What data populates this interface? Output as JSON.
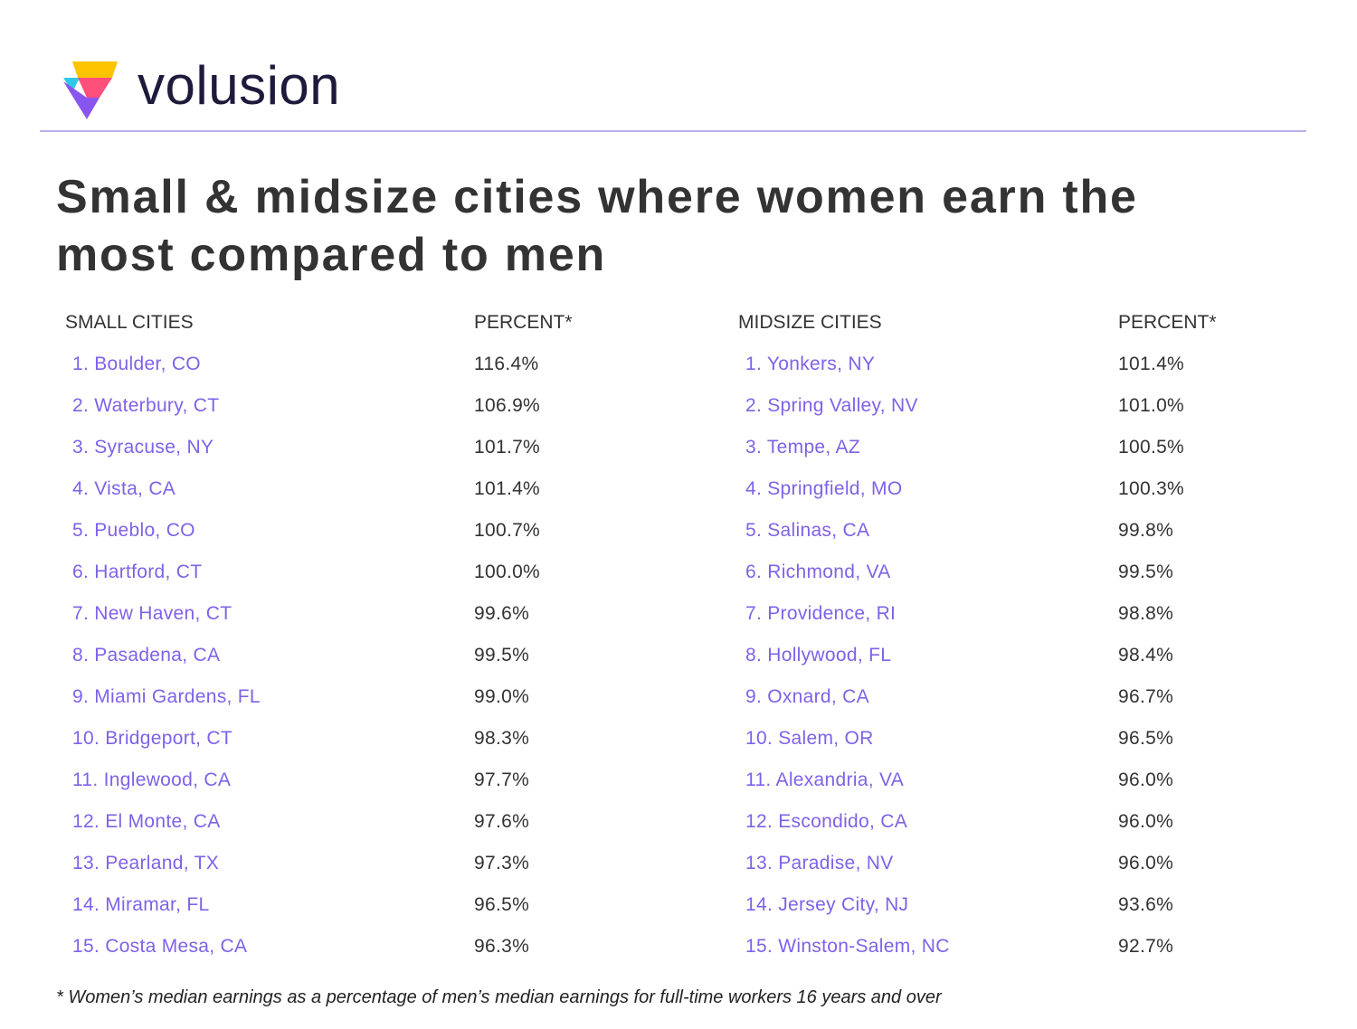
{
  "header": {
    "brand": "volusion"
  },
  "title_lines": [
    "Small & midsize cities where women earn the",
    "most compared to men"
  ],
  "tables": [
    {
      "headers": [
        "SMALL CITIES",
        "PERCENT*"
      ],
      "rows": [
        [
          "1. Boulder, CO",
          "116.4%"
        ],
        [
          "2. Waterbury, CT",
          "106.9%"
        ],
        [
          "3. Syracuse, NY",
          "101.7%"
        ],
        [
          "4. Vista, CA",
          "101.4%"
        ],
        [
          "5. Pueblo, CO",
          "100.7%"
        ],
        [
          "6. Hartford, CT",
          "100.0%"
        ],
        [
          "7. New Haven, CT",
          "99.6%"
        ],
        [
          "8. Pasadena, CA",
          "99.5%"
        ],
        [
          "9. Miami Gardens, FL",
          "99.0%"
        ],
        [
          "10. Bridgeport, CT",
          "98.3%"
        ],
        [
          "11. Inglewood, CA",
          "97.7%"
        ],
        [
          "12. El Monte, CA",
          "97.6%"
        ],
        [
          "13. Pearland, TX",
          "97.3%"
        ],
        [
          "14. Miramar, FL",
          "96.5%"
        ],
        [
          "15. Costa Mesa, CA",
          "96.3%"
        ]
      ]
    },
    {
      "headers": [
        "MIDSIZE CITIES",
        "PERCENT*"
      ],
      "rows": [
        [
          "1. Yonkers, NY",
          "101.4%"
        ],
        [
          "2. Spring Valley, NV",
          "101.0%"
        ],
        [
          "3. Tempe, AZ",
          "100.5%"
        ],
        [
          "4. Springfield, MO",
          "100.3%"
        ],
        [
          "5. Salinas, CA",
          "99.8%"
        ],
        [
          "6. Richmond, VA",
          "99.5%"
        ],
        [
          "7. Providence, RI",
          "98.8%"
        ],
        [
          "8. Hollywood, FL",
          "98.4%"
        ],
        [
          "9. Oxnard, CA",
          "96.7%"
        ],
        [
          "10. Salem, OR",
          "96.5%"
        ],
        [
          "11. Alexandria, VA",
          "96.0%"
        ],
        [
          "12. Escondido, CA",
          "96.0%"
        ],
        [
          "13. Paradise, NV",
          "96.0%"
        ],
        [
          "14. Jersey City, NJ",
          "93.6%"
        ],
        [
          "15. Winston-Salem, NC",
          "92.7%"
        ]
      ]
    }
  ],
  "footnote": "* Women’s median earnings as a percentage of men’s median earnings for full-time workers 16 years and over"
}
